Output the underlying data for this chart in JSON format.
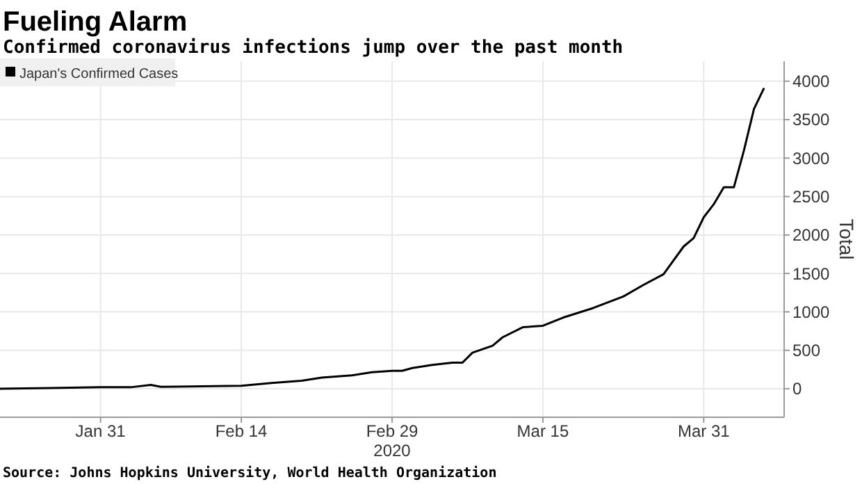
{
  "chart_data": {
    "type": "line",
    "title": "Fueling Alarm",
    "subtitle": "Confirmed coronavirus infections jump over the past month",
    "ylabel": "Total",
    "annotations": [
      "Source: Johns Hopkins University, World Health Organization"
    ],
    "xlim": [
      "2020-01-21",
      "2020-04-08"
    ],
    "ylim": [
      -370,
      4260
    ],
    "yticks": [
      0,
      500,
      1000,
      1500,
      2000,
      2500,
      3000,
      3500,
      4000
    ],
    "xticks": [
      {
        "value": "2020-01-31",
        "label": "Jan 31"
      },
      {
        "value": "2020-02-14",
        "label": "Feb 14"
      },
      {
        "value": "2020-02-29",
        "label": "Feb 29"
      },
      {
        "value": "2020-03-15",
        "label": "Mar 15"
      },
      {
        "value": "2020-03-31",
        "label": "Mar 31"
      }
    ],
    "x2label": "2020",
    "grid": true,
    "legend": "top left",
    "series": [
      {
        "name": "Japan's Confirmed Cases",
        "color": "#000000",
        "x": [
          "2020-01-21",
          "2020-01-26",
          "2020-01-31",
          "2020-02-03",
          "2020-02-05",
          "2020-02-06",
          "2020-02-14",
          "2020-02-17",
          "2020-02-20",
          "2020-02-22",
          "2020-02-25",
          "2020-02-27",
          "2020-02-29",
          "2020-03-01",
          "2020-03-02",
          "2020-03-04",
          "2020-03-06",
          "2020-03-07",
          "2020-03-08",
          "2020-03-10",
          "2020-03-11",
          "2020-03-13",
          "2020-03-15",
          "2020-03-17",
          "2020-03-20",
          "2020-03-23",
          "2020-03-25",
          "2020-03-27",
          "2020-03-29",
          "2020-03-30",
          "2020-03-31",
          "2020-04-01",
          "2020-04-02",
          "2020-04-03",
          "2020-04-04",
          "2020-04-05",
          "2020-04-06"
        ],
        "values": [
          0,
          10,
          20,
          20,
          50,
          25,
          40,
          75,
          105,
          146,
          175,
          215,
          234,
          234,
          270,
          310,
          340,
          340,
          470,
          560,
          670,
          800,
          820,
          925,
          1050,
          1200,
          1350,
          1490,
          1850,
          1960,
          2230,
          2400,
          2620,
          2620,
          3100,
          3640,
          3910
        ]
      }
    ]
  }
}
